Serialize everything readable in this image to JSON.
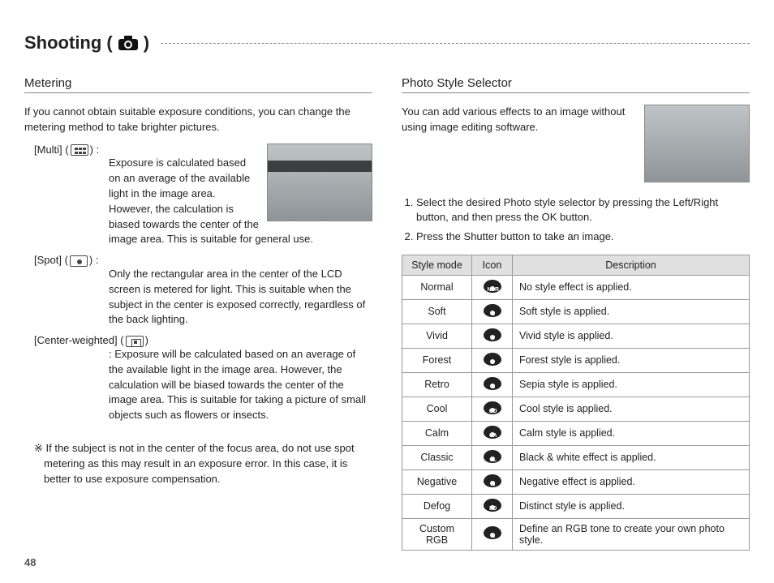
{
  "page": {
    "title_prefix": "Shooting (",
    "title_suffix": ")",
    "number": "48"
  },
  "metering": {
    "heading": "Metering",
    "intro": "If you cannot obtain suitable exposure conditions, you can change the metering method to take brighter pictures.",
    "items": [
      {
        "label": "[Multi] (",
        "label_suffix": ") :",
        "text": "Exposure is calculated based on an average of the available light in the image area. However, the calculation is biased towards the center of the image area. This is suitable for general use."
      },
      {
        "label": "[Spot] (",
        "label_suffix": ") :",
        "text": "Only the rectangular area in the center of the LCD screen is metered for light. This is suitable when the subject in the center is exposed correctly, regardless of the back lighting."
      },
      {
        "label": "[Center-weighted] (",
        "label_suffix": ")",
        "text": ": Exposure will be calculated based on an average of the available light in the image area. However, the calculation will be biased towards the center of the image area. This is suitable for taking a picture of small objects such as flowers or insects."
      }
    ],
    "note": "※ If the subject is not in the center of the focus area, do not use spot metering as this may result in an exposure error. In this case, it is better to use exposure compensation."
  },
  "photostyle": {
    "heading": "Photo Style Selector",
    "intro": "You can add various effects to an image without using image editing software.",
    "steps": [
      "Select the desired Photo style selector by pressing the Left/Right button, and then press the OK button.",
      "Press the Shutter button to take an image."
    ],
    "table": {
      "headers": [
        "Style mode",
        "Icon",
        "Description"
      ],
      "rows": [
        {
          "mode": "Normal",
          "sub": "NOR",
          "desc": "No style effect is applied."
        },
        {
          "mode": "Soft",
          "sub": "S",
          "desc": "Soft style is applied."
        },
        {
          "mode": "Vivid",
          "sub": "V",
          "desc": "Vivid style is applied."
        },
        {
          "mode": "Forest",
          "sub": "F",
          "desc": "Forest style is applied."
        },
        {
          "mode": "Retro",
          "sub": "R",
          "desc": "Sepia style is applied."
        },
        {
          "mode": "Cool",
          "sub": "CO",
          "desc": "Cool style is applied."
        },
        {
          "mode": "Calm",
          "sub": "CA",
          "desc": "Calm style is applied."
        },
        {
          "mode": "Classic",
          "sub": "CL",
          "desc": "Black & white effect is applied."
        },
        {
          "mode": "Negative",
          "sub": "N",
          "desc": "Negative effect is applied."
        },
        {
          "mode": "Defog",
          "sub": "FO",
          "desc": "Distinct style is applied."
        },
        {
          "mode": "Custom RGB",
          "sub": "C",
          "desc": "Define an RGB tone to create your own photo style."
        }
      ]
    }
  }
}
